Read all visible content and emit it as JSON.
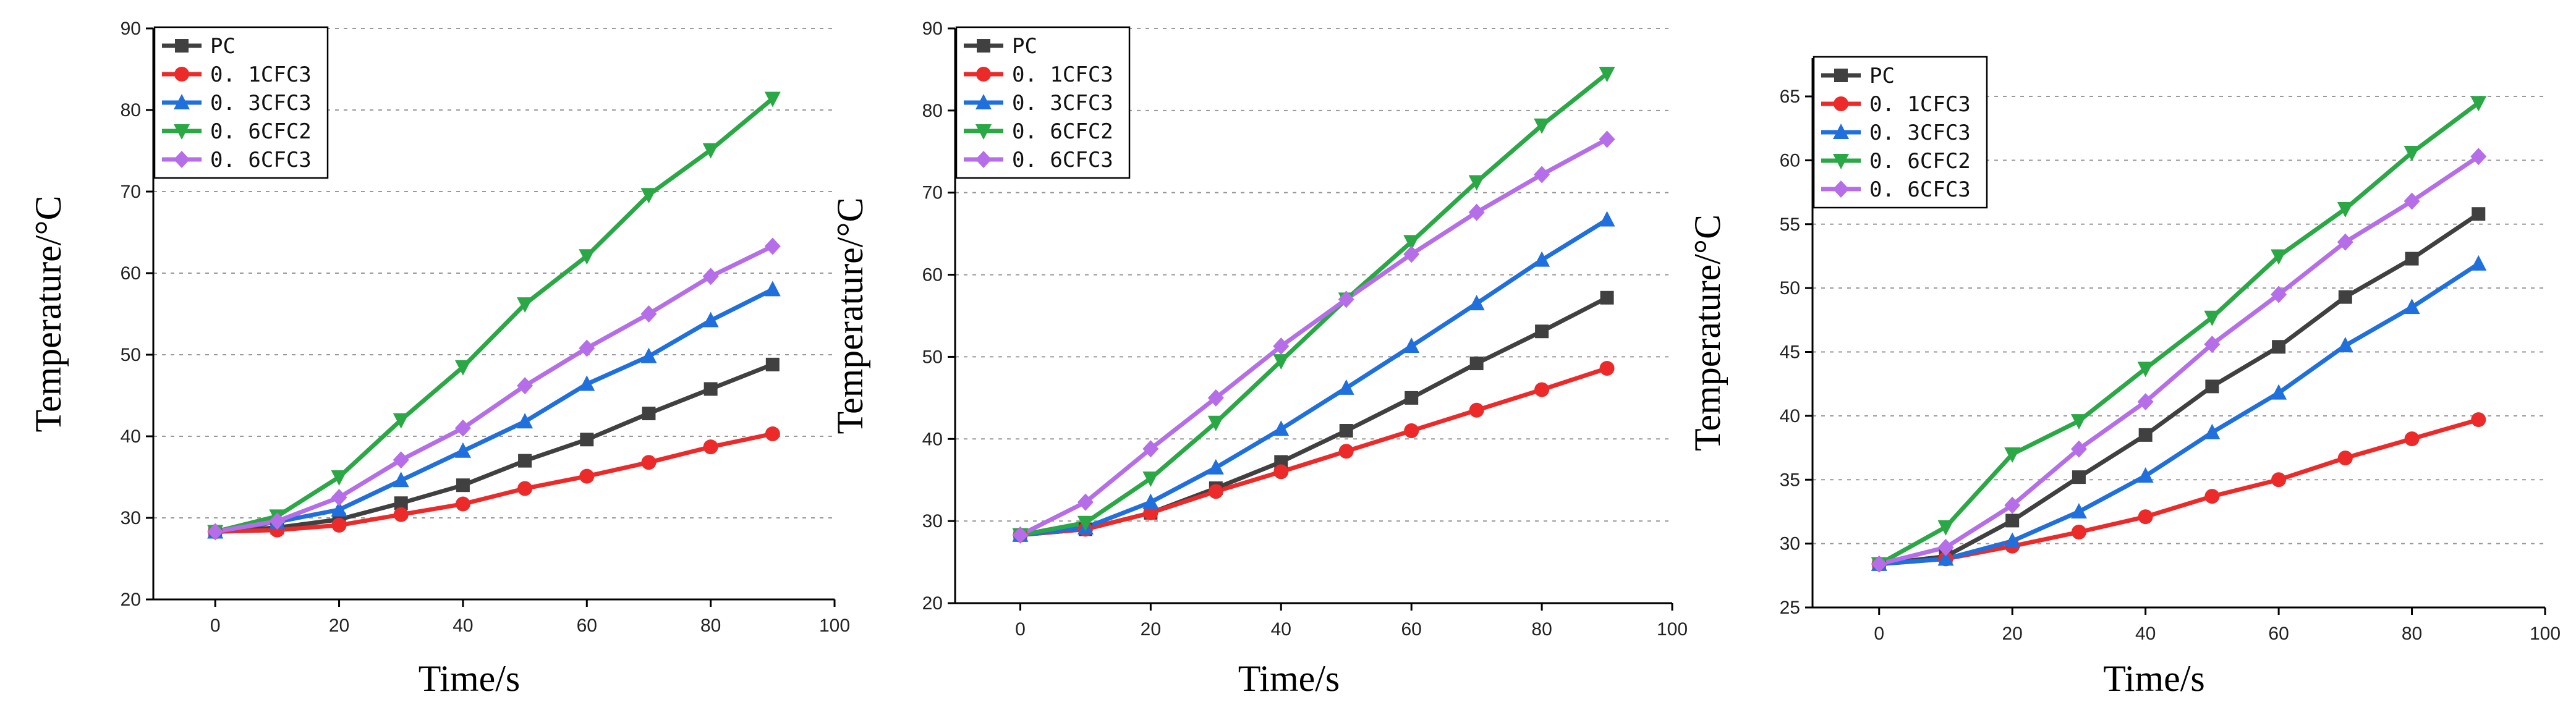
{
  "chart_data": [
    {
      "type": "line",
      "title": "",
      "xlabel": "Time/s",
      "ylabel": "Temperature/°C",
      "xlim": [
        -10,
        100
      ],
      "ylim": [
        20,
        90
      ],
      "xticks": [
        0,
        20,
        40,
        60,
        80,
        100
      ],
      "yticks": [
        20,
        30,
        40,
        50,
        60,
        70,
        80,
        90
      ],
      "x": [
        0,
        10,
        20,
        30,
        40,
        50,
        60,
        70,
        80,
        90
      ],
      "grid": "horizontal dashed",
      "legend_position": "top-left",
      "series": [
        {
          "name": "PC",
          "color": "#404040",
          "marker": "square",
          "values": [
            28.3,
            28.8,
            29.8,
            31.8,
            34.0,
            37.0,
            39.6,
            42.8,
            45.8,
            48.8
          ]
        },
        {
          "name": "0. 1CFC3",
          "color": "#ec2a2a",
          "marker": "circle",
          "values": [
            28.3,
            28.5,
            29.1,
            30.4,
            31.7,
            33.6,
            35.1,
            36.8,
            38.7,
            40.3
          ]
        },
        {
          "name": "0. 3CFC3",
          "color": "#1f6fdd",
          "marker": "triangle-up",
          "values": [
            28.3,
            29.5,
            31.0,
            34.6,
            38.2,
            41.8,
            46.4,
            49.8,
            54.2,
            58.0
          ]
        },
        {
          "name": "0. 6CFC2",
          "color": "#29a845",
          "marker": "triangle-down",
          "values": [
            28.3,
            30.2,
            35.0,
            42.0,
            48.5,
            56.2,
            62.1,
            69.6,
            75.1,
            81.4
          ]
        },
        {
          "name": "0. 6CFC3",
          "color": "#b56ee8",
          "marker": "diamond",
          "values": [
            28.3,
            29.6,
            32.5,
            37.1,
            41.0,
            46.2,
            50.8,
            55.0,
            59.6,
            63.3
          ]
        }
      ]
    },
    {
      "type": "line",
      "title": "",
      "xlabel": "Time/s",
      "ylabel": "Temperature/°C",
      "xlim": [
        -10,
        100
      ],
      "ylim": [
        20,
        90
      ],
      "xticks": [
        0,
        20,
        40,
        60,
        80,
        100
      ],
      "yticks": [
        20,
        30,
        40,
        50,
        60,
        70,
        80,
        90
      ],
      "x": [
        0,
        10,
        20,
        30,
        40,
        50,
        60,
        70,
        80,
        90
      ],
      "grid": "horizontal dashed",
      "legend_position": "top-left",
      "series": [
        {
          "name": "PC",
          "color": "#404040",
          "marker": "square",
          "values": [
            28.3,
            29.0,
            31.0,
            34.0,
            37.2,
            41.0,
            45.0,
            49.2,
            53.1,
            57.2
          ]
        },
        {
          "name": "0. 1CFC3",
          "color": "#ec2a2a",
          "marker": "circle",
          "values": [
            28.3,
            29.0,
            31.0,
            33.6,
            36.0,
            38.5,
            41.0,
            43.5,
            46.0,
            48.6
          ]
        },
        {
          "name": "0. 3CFC3",
          "color": "#1f6fdd",
          "marker": "triangle-up",
          "values": [
            28.3,
            29.2,
            32.3,
            36.5,
            41.2,
            46.2,
            51.3,
            56.5,
            61.8,
            66.7
          ]
        },
        {
          "name": "0. 6CFC2",
          "color": "#29a845",
          "marker": "triangle-down",
          "values": [
            28.3,
            29.8,
            35.2,
            42.0,
            49.5,
            57.0,
            64.0,
            71.3,
            78.2,
            84.5
          ]
        },
        {
          "name": "0. 6CFC3",
          "color": "#b56ee8",
          "marker": "diamond",
          "values": [
            28.3,
            32.3,
            38.8,
            45.0,
            51.3,
            57.0,
            62.5,
            67.6,
            72.2,
            76.5
          ]
        }
      ]
    },
    {
      "type": "line",
      "title": "",
      "xlabel": "Time/s",
      "ylabel": "Temperature/°C",
      "xlim": [
        -10,
        100
      ],
      "ylim": [
        25,
        68
      ],
      "xticks": [
        0,
        20,
        40,
        60,
        80,
        100
      ],
      "yticks": [
        25,
        30,
        35,
        40,
        45,
        50,
        55,
        60,
        65
      ],
      "x": [
        0,
        10,
        20,
        30,
        40,
        50,
        60,
        70,
        80,
        90
      ],
      "grid": "horizontal dashed",
      "legend_position": "top-left",
      "series": [
        {
          "name": "PC",
          "color": "#404040",
          "marker": "square",
          "values": [
            28.4,
            29.0,
            31.8,
            35.2,
            38.5,
            42.3,
            45.4,
            49.3,
            52.3,
            55.8
          ]
        },
        {
          "name": "0. 1CFC3",
          "color": "#ec2a2a",
          "marker": "circle",
          "values": [
            28.4,
            28.8,
            29.8,
            30.9,
            32.1,
            33.7,
            35.0,
            36.7,
            38.2,
            39.7
          ]
        },
        {
          "name": "0. 3CFC3",
          "color": "#1f6fdd",
          "marker": "triangle-up",
          "values": [
            28.4,
            28.8,
            30.2,
            32.5,
            35.3,
            38.7,
            41.8,
            45.5,
            48.5,
            51.9
          ]
        },
        {
          "name": "0. 6CFC2",
          "color": "#29a845",
          "marker": "triangle-down",
          "values": [
            28.4,
            31.3,
            37.0,
            39.6,
            43.7,
            47.7,
            52.5,
            56.2,
            60.6,
            64.5
          ]
        },
        {
          "name": "0. 6CFC3",
          "color": "#b56ee8",
          "marker": "diamond",
          "values": [
            28.4,
            29.7,
            33.0,
            37.4,
            41.1,
            45.6,
            49.5,
            53.6,
            56.8,
            60.3
          ]
        }
      ]
    }
  ]
}
